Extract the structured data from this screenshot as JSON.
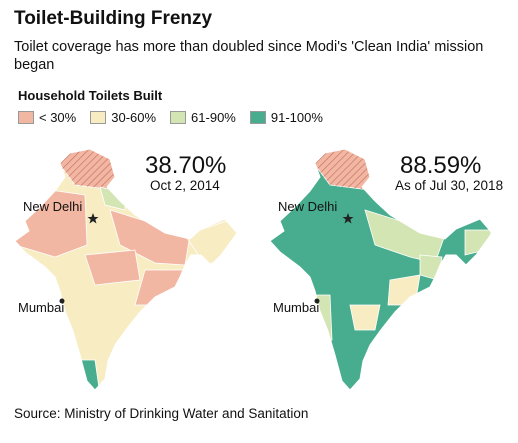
{
  "title": "Toilet-Building Frenzy",
  "subtitle": "Toilet coverage has more than doubled since Modi's 'Clean India' mission began",
  "legend": {
    "title": "Household Toilets Built",
    "items": [
      {
        "label": "< 30%",
        "color": "#f2b7a3"
      },
      {
        "label": "30-60%",
        "color": "#f8ecc3"
      },
      {
        "label": "61-90%",
        "color": "#d2e5b3"
      },
      {
        "label": "91-100%",
        "color": "#47ad8e"
      }
    ]
  },
  "maps": [
    {
      "value": "38.70%",
      "date": "Oct 2, 2014",
      "cities": [
        "New Delhi",
        "Mumbai"
      ]
    },
    {
      "value": "88.59%",
      "date": "As of Jul 30, 2018",
      "cities": [
        "New Delhi",
        "Mumbai"
      ]
    }
  ],
  "source": "Source: Ministry of Drinking Water and Sanitation"
}
